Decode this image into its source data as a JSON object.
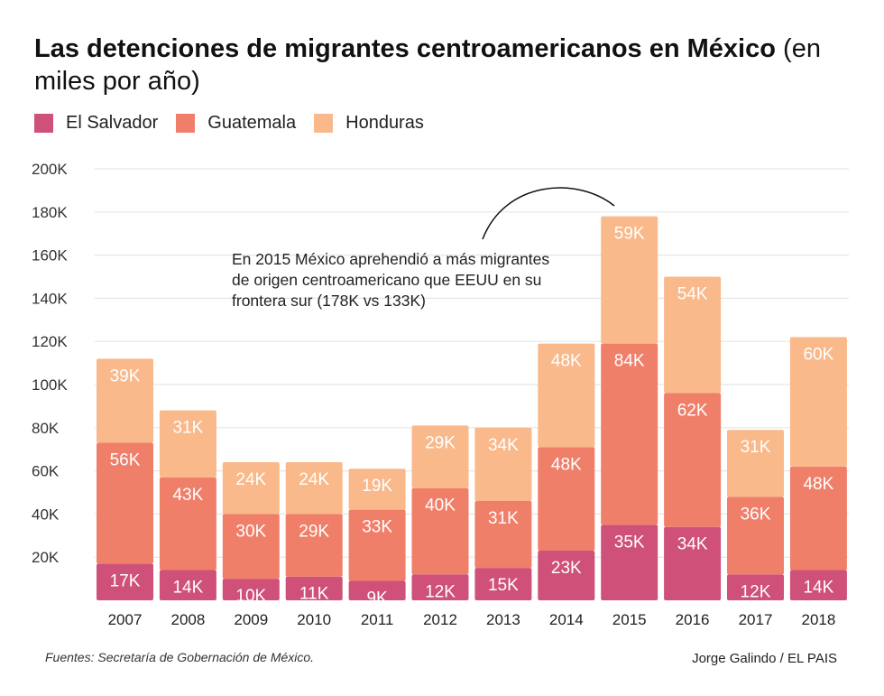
{
  "title": "Las detenciones de migrantes centroamericanos en México",
  "subtitle": "(en miles por año)",
  "colors": {
    "El Salvador": "#cf5079",
    "Guatemala": "#f07f6a",
    "Honduras": "#f9b98b"
  },
  "annotation": "En 2015 México aprehendió a más migrantes de origen centroamericano que EEUU en su frontera sur (178K vs 133K)",
  "source": "Fuentes: Secretaría de Gobernación de México.",
  "credit": "Jorge Galindo / EL PAIS",
  "chart_data": {
    "type": "bar",
    "stacked": true,
    "categories": [
      "2007",
      "2008",
      "2009",
      "2010",
      "2011",
      "2012",
      "2013",
      "2014",
      "2015",
      "2016",
      "2017",
      "2018"
    ],
    "series": [
      {
        "name": "El Salvador",
        "values": [
          17,
          14,
          10,
          11,
          9,
          12,
          15,
          23,
          35,
          34,
          12,
          14
        ]
      },
      {
        "name": "Guatemala",
        "values": [
          56,
          43,
          30,
          29,
          33,
          40,
          31,
          48,
          84,
          62,
          36,
          48
        ]
      },
      {
        "name": "Honduras",
        "values": [
          39,
          31,
          24,
          24,
          19,
          29,
          34,
          48,
          59,
          54,
          31,
          60
        ]
      }
    ],
    "data_label_suffix": "K",
    "yticks": [
      "20K",
      "40K",
      "60K",
      "80K",
      "100K",
      "120K",
      "140K",
      "160K",
      "180K",
      "200K"
    ],
    "ylim": [
      0,
      200
    ],
    "grid": true,
    "legend": "top-left"
  }
}
